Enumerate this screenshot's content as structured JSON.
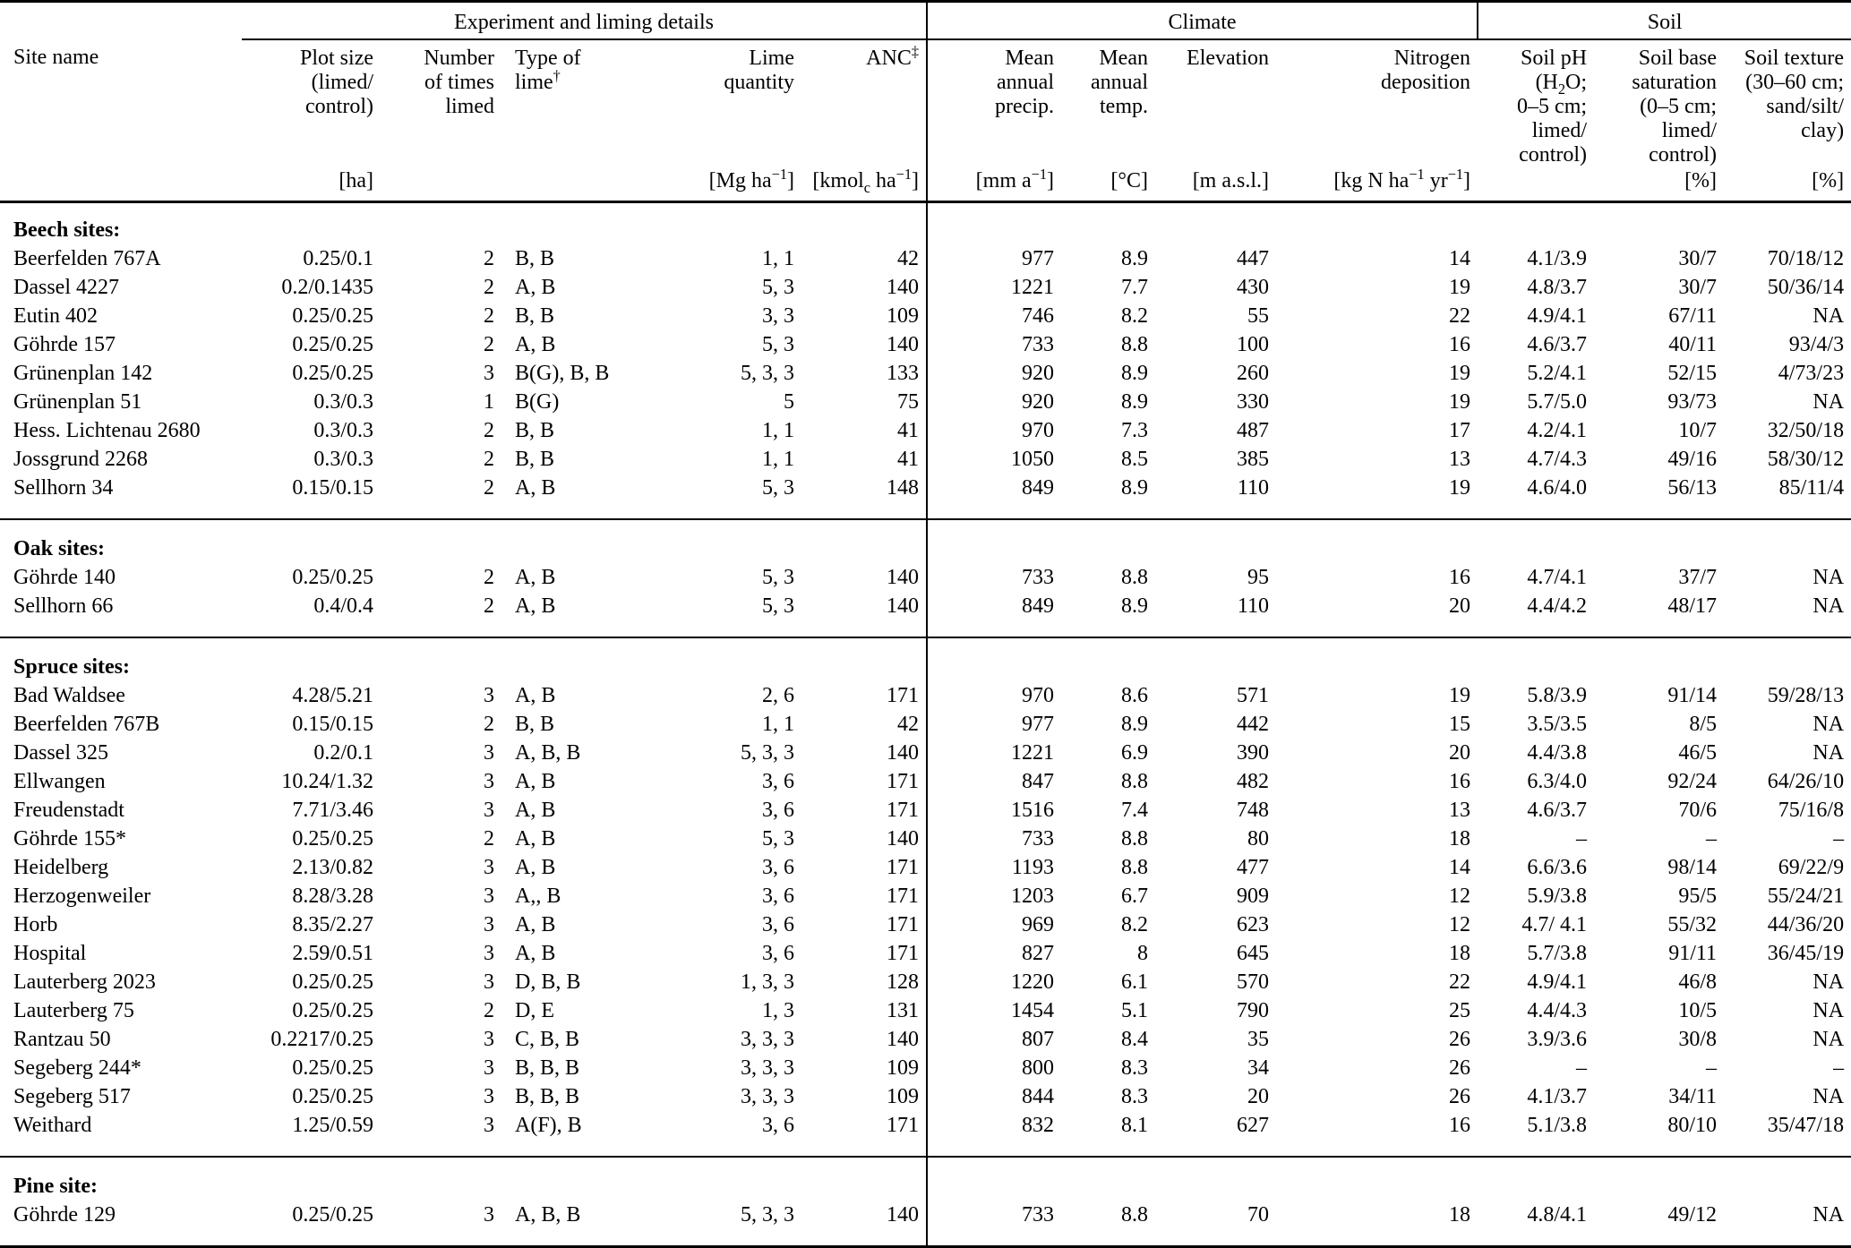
{
  "table": {
    "group_headers": [
      {
        "label": "Experiment and liming details"
      },
      {
        "label": "Climate"
      },
      {
        "label": "Soil"
      }
    ],
    "columns": [
      {
        "key": "site",
        "header": "Site name",
        "unit": ""
      },
      {
        "key": "plot_size",
        "header": "Plot size\n(limed/\ncontrol)",
        "unit": "[ha]"
      },
      {
        "key": "times_limed",
        "header": "Number\nof times\nlimed",
        "unit": ""
      },
      {
        "key": "lime_type",
        "header": "Type of\nlime<sup>†</sup>",
        "unit": ""
      },
      {
        "key": "lime_quantity",
        "header": "Lime\nquantity",
        "unit": "[Mg ha<sup>−1</sup>]"
      },
      {
        "key": "anc",
        "header": "ANC<sup>‡</sup>",
        "unit": "[kmol<sub>c</sub> ha<sup>−1</sup>]"
      },
      {
        "key": "precip",
        "header": "Mean\nannual\nprecip.",
        "unit": "[mm a<sup>−1</sup>]"
      },
      {
        "key": "temp",
        "header": "Mean\nannual\ntemp.",
        "unit": "[°C]"
      },
      {
        "key": "elevation",
        "header": "Elevation",
        "unit": "[m a.s.l.]"
      },
      {
        "key": "n_deposition",
        "header": "Nitrogen\ndeposition",
        "unit": "[kg N ha<sup>−1</sup> yr<sup>−1</sup>]"
      },
      {
        "key": "soil_ph",
        "header": "Soil pH\n(H<sub>2</sub>O;\n0–5 cm;\nlimed/\ncontrol)",
        "unit": ""
      },
      {
        "key": "base_saturation",
        "header": "Soil base\nsaturation\n(0–5 cm;\nlimed/\ncontrol)",
        "unit": "[%]"
      },
      {
        "key": "soil_texture",
        "header": "Soil texture\n(30–60 cm;\nsand/silt/\nclay)",
        "unit": "[%]"
      }
    ],
    "sections": [
      {
        "label": "Beech sites:",
        "rows": [
          [
            "Beerfelden 767A",
            "0.25/0.1",
            "2",
            "B, B",
            "1, 1",
            "42",
            "977",
            "8.9",
            "447",
            "14",
            "4.1/3.9",
            "30/7",
            "70/18/12"
          ],
          [
            "Dassel 4227",
            "0.2/0.1435",
            "2",
            "A, B",
            "5, 3",
            "140",
            "1221",
            "7.7",
            "430",
            "19",
            "4.8/3.7",
            "30/7",
            "50/36/14"
          ],
          [
            "Eutin 402",
            "0.25/0.25",
            "2",
            "B, B",
            "3, 3",
            "109",
            "746",
            "8.2",
            "55",
            "22",
            "4.9/4.1",
            "67/11",
            "NA"
          ],
          [
            "Göhrde 157",
            "0.25/0.25",
            "2",
            "A, B",
            "5, 3",
            "140",
            "733",
            "8.8",
            "100",
            "16",
            "4.6/3.7",
            "40/11",
            "93/4/3"
          ],
          [
            "Grünenplan 142",
            "0.25/0.25",
            "3",
            "B(G), B, B",
            "5, 3, 3",
            "133",
            "920",
            "8.9",
            "260",
            "19",
            "5.2/4.1",
            "52/15",
            "4/73/23"
          ],
          [
            "Grünenplan 51",
            "0.3/0.3",
            "1",
            "B(G)",
            "5",
            "75",
            "920",
            "8.9",
            "330",
            "19",
            "5.7/5.0",
            "93/73",
            "NA"
          ],
          [
            "Hess. Lichtenau 2680",
            "0.3/0.3",
            "2",
            "B, B",
            "1, 1",
            "41",
            "970",
            "7.3",
            "487",
            "17",
            "4.2/4.1",
            "10/7",
            "32/50/18"
          ],
          [
            "Jossgrund 2268",
            "0.3/0.3",
            "2",
            "B, B",
            "1, 1",
            "41",
            "1050",
            "8.5",
            "385",
            "13",
            "4.7/4.3",
            "49/16",
            "58/30/12"
          ],
          [
            "Sellhorn 34",
            "0.15/0.15",
            "2",
            "A, B",
            "5, 3",
            "148",
            "849",
            "8.9",
            "110",
            "19",
            "4.6/4.0",
            "56/13",
            "85/11/4"
          ]
        ]
      },
      {
        "label": "Oak sites:",
        "rows": [
          [
            "Göhrde 140",
            "0.25/0.25",
            "2",
            "A, B",
            "5, 3",
            "140",
            "733",
            "8.8",
            "95",
            "16",
            "4.7/4.1",
            "37/7",
            "NA"
          ],
          [
            "Sellhorn 66",
            "0.4/0.4",
            "2",
            "A, B",
            "5, 3",
            "140",
            "849",
            "8.9",
            "110",
            "20",
            "4.4/4.2",
            "48/17",
            "NA"
          ]
        ]
      },
      {
        "label": "Spruce sites:",
        "rows": [
          [
            "Bad Waldsee",
            "4.28/5.21",
            "3",
            "A, B",
            "2, 6",
            "171",
            "970",
            "8.6",
            "571",
            "19",
            "5.8/3.9",
            "91/14",
            "59/28/13"
          ],
          [
            "Beerfelden 767B",
            "0.15/0.15",
            "2",
            "B, B",
            "1, 1",
            "42",
            "977",
            "8.9",
            "442",
            "15",
            "3.5/3.5",
            "8/5",
            "NA"
          ],
          [
            "Dassel 325",
            "0.2/0.1",
            "3",
            "A, B, B",
            "5, 3, 3",
            "140",
            "1221",
            "6.9",
            "390",
            "20",
            "4.4/3.8",
            "46/5",
            "NA"
          ],
          [
            "Ellwangen",
            "10.24/1.32",
            "3",
            "A, B",
            "3, 6",
            "171",
            "847",
            "8.8",
            "482",
            "16",
            "6.3/4.0",
            "92/24",
            "64/26/10"
          ],
          [
            "Freudenstadt",
            "7.71/3.46",
            "3",
            "A, B",
            "3, 6",
            "171",
            "1516",
            "7.4",
            "748",
            "13",
            "4.6/3.7",
            "70/6",
            "75/16/8"
          ],
          [
            "Göhrde 155*",
            "0.25/0.25",
            "2",
            "A, B",
            "5, 3",
            "140",
            "733",
            "8.8",
            "80",
            "18",
            "–",
            "–",
            "–"
          ],
          [
            "Heidelberg",
            "2.13/0.82",
            "3",
            "A, B",
            "3, 6",
            "171",
            "1193",
            "8.8",
            "477",
            "14",
            "6.6/3.6",
            "98/14",
            "69/22/9"
          ],
          [
            "Herzogenweiler",
            "8.28/3.28",
            "3",
            "A,, B",
            "3, 6",
            "171",
            "1203",
            "6.7",
            "909",
            "12",
            "5.9/3.8",
            "95/5",
            "55/24/21"
          ],
          [
            "Horb",
            "8.35/2.27",
            "3",
            "A, B",
            "3, 6",
            "171",
            "969",
            "8.2",
            "623",
            "12",
            "4.7/ 4.1",
            "55/32",
            "44/36/20"
          ],
          [
            "Hospital",
            "2.59/0.51",
            "3",
            "A, B",
            "3, 6",
            "171",
            "827",
            "8",
            "645",
            "18",
            "5.7/3.8",
            "91/11",
            "36/45/19"
          ],
          [
            "Lauterberg 2023",
            "0.25/0.25",
            "3",
            "D, B, B",
            "1, 3, 3",
            "128",
            "1220",
            "6.1",
            "570",
            "22",
            "4.9/4.1",
            "46/8",
            "NA"
          ],
          [
            "Lauterberg 75",
            "0.25/0.25",
            "2",
            "D, E",
            "1, 3",
            "131",
            "1454",
            "5.1",
            "790",
            "25",
            "4.4/4.3",
            "10/5",
            "NA"
          ],
          [
            "Rantzau 50",
            "0.2217/0.25",
            "3",
            "C, B, B",
            "3, 3, 3",
            "140",
            "807",
            "8.4",
            "35",
            "26",
            "3.9/3.6",
            "30/8",
            "NA"
          ],
          [
            "Segeberg 244*",
            "0.25/0.25",
            "3",
            "B, B, B",
            "3, 3, 3",
            "109",
            "800",
            "8.3",
            "34",
            "26",
            "–",
            "–",
            "–"
          ],
          [
            "Segeberg 517",
            "0.25/0.25",
            "3",
            "B, B, B",
            "3, 3, 3",
            "109",
            "844",
            "8.3",
            "20",
            "26",
            "4.1/3.7",
            "34/11",
            "NA"
          ],
          [
            "Weithard",
            "1.25/0.59",
            "3",
            "A(F), B",
            "3, 6",
            "171",
            "832",
            "8.1",
            "627",
            "16",
            "5.1/3.8",
            "80/10",
            "35/47/18"
          ]
        ]
      },
      {
        "label": "Pine site:",
        "rows": [
          [
            "Göhrde 129",
            "0.25/0.25",
            "3",
            "A, B, B",
            "5, 3, 3",
            "140",
            "733",
            "8.8",
            "70",
            "18",
            "4.8/4.1",
            "49/12",
            "NA"
          ]
        ]
      }
    ]
  }
}
